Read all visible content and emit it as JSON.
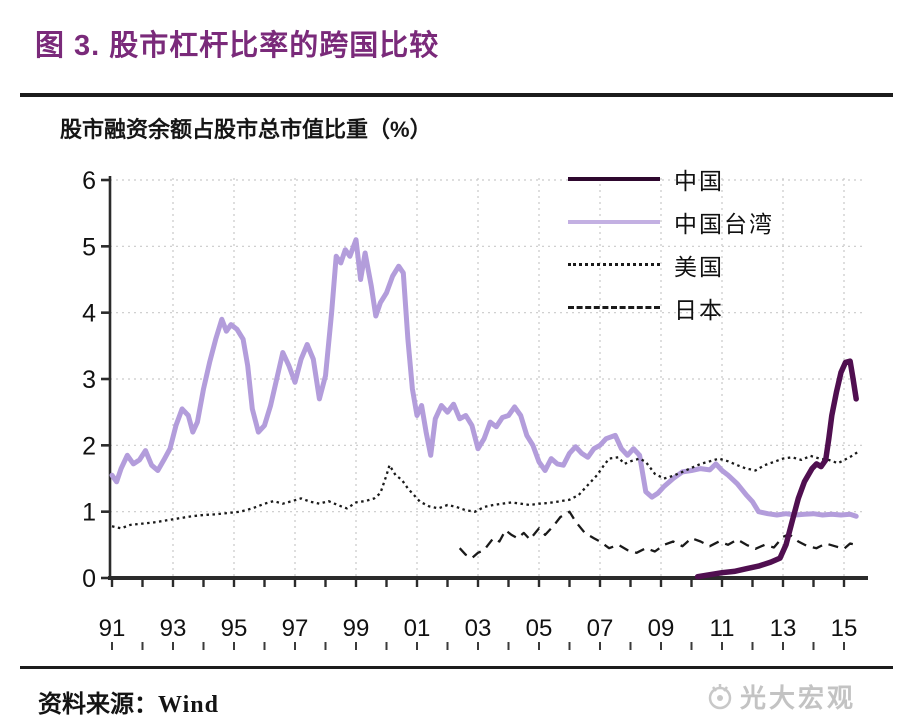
{
  "figure": {
    "title": "图 3. 股市杠杆比率的跨国比较",
    "subtitle": "股市融资余额占股市总市值比重（%）",
    "source_label": "资料来源：",
    "source_value": "Wind",
    "watermark": "光大宏观"
  },
  "colors": {
    "title": "#7a2a7a",
    "axis": "#2b2b2b",
    "grid": "#c9c9c9",
    "china": "#500f50",
    "taiwan": "#b39ddb",
    "usa": "#1a1a1a",
    "japan": "#1a1a1a"
  },
  "chart_data": {
    "type": "line",
    "title": "股市融资余额占股市总市值比重（%）",
    "xlabel": "",
    "ylabel": "股市融资余额占股市总市值比重（%）",
    "grid": "dotted",
    "legend_position": "top-right",
    "x_axis": {
      "tick_labels": [
        "91",
        "93",
        "95",
        "97",
        "99",
        "01",
        "03",
        "05",
        "07",
        "09",
        "11",
        "13",
        "15"
      ],
      "tick_years": [
        1991,
        1993,
        1995,
        1997,
        1999,
        2001,
        2003,
        2005,
        2007,
        2009,
        2011,
        2013,
        2015
      ],
      "minor_tick_every_years": 1,
      "range": [
        1990.9,
        2015.8
      ]
    },
    "y_axis": {
      "ticks": [
        0,
        1,
        2,
        3,
        4,
        5,
        6
      ],
      "range": [
        0,
        6
      ]
    },
    "series": [
      {
        "name": "china",
        "label": "中国",
        "style": "solid",
        "color": "#500f50",
        "width": 5.5,
        "z": 4,
        "points": [
          [
            2010.2,
            0.02
          ],
          [
            2010.6,
            0.05
          ],
          [
            2011.0,
            0.08
          ],
          [
            2011.4,
            0.1
          ],
          [
            2011.8,
            0.14
          ],
          [
            2012.2,
            0.18
          ],
          [
            2012.6,
            0.24
          ],
          [
            2012.9,
            0.3
          ],
          [
            2013.1,
            0.5
          ],
          [
            2013.3,
            0.85
          ],
          [
            2013.5,
            1.2
          ],
          [
            2013.7,
            1.45
          ],
          [
            2013.95,
            1.65
          ],
          [
            2014.1,
            1.72
          ],
          [
            2014.25,
            1.68
          ],
          [
            2014.4,
            1.78
          ],
          [
            2014.5,
            2.1
          ],
          [
            2014.6,
            2.45
          ],
          [
            2014.75,
            2.8
          ],
          [
            2014.9,
            3.1
          ],
          [
            2015.05,
            3.25
          ],
          [
            2015.2,
            3.27
          ],
          [
            2015.3,
            3.0
          ],
          [
            2015.4,
            2.7
          ]
        ]
      },
      {
        "name": "taiwan",
        "label": "中国台湾",
        "style": "solid",
        "color": "#b39ddb",
        "width": 5,
        "z": 1,
        "points": [
          [
            1991.0,
            1.55
          ],
          [
            1991.15,
            1.45
          ],
          [
            1991.3,
            1.65
          ],
          [
            1991.5,
            1.85
          ],
          [
            1991.7,
            1.72
          ],
          [
            1991.9,
            1.78
          ],
          [
            1992.1,
            1.92
          ],
          [
            1992.3,
            1.7
          ],
          [
            1992.5,
            1.62
          ],
          [
            1992.7,
            1.78
          ],
          [
            1992.9,
            1.95
          ],
          [
            1993.1,
            2.3
          ],
          [
            1993.3,
            2.55
          ],
          [
            1993.5,
            2.45
          ],
          [
            1993.65,
            2.2
          ],
          [
            1993.8,
            2.35
          ],
          [
            1994.0,
            2.85
          ],
          [
            1994.2,
            3.25
          ],
          [
            1994.4,
            3.6
          ],
          [
            1994.6,
            3.9
          ],
          [
            1994.75,
            3.72
          ],
          [
            1994.9,
            3.82
          ],
          [
            1995.1,
            3.75
          ],
          [
            1995.3,
            3.6
          ],
          [
            1995.45,
            3.2
          ],
          [
            1995.6,
            2.55
          ],
          [
            1995.8,
            2.2
          ],
          [
            1996.0,
            2.3
          ],
          [
            1996.2,
            2.6
          ],
          [
            1996.4,
            3.0
          ],
          [
            1996.6,
            3.4
          ],
          [
            1996.8,
            3.2
          ],
          [
            1997.0,
            2.95
          ],
          [
            1997.2,
            3.3
          ],
          [
            1997.4,
            3.52
          ],
          [
            1997.6,
            3.3
          ],
          [
            1997.8,
            2.7
          ],
          [
            1998.0,
            3.05
          ],
          [
            1998.2,
            4.0
          ],
          [
            1998.35,
            4.85
          ],
          [
            1998.5,
            4.75
          ],
          [
            1998.65,
            4.95
          ],
          [
            1998.8,
            4.85
          ],
          [
            1999.0,
            5.1
          ],
          [
            1999.15,
            4.5
          ],
          [
            1999.3,
            4.9
          ],
          [
            1999.5,
            4.4
          ],
          [
            1999.65,
            3.95
          ],
          [
            1999.8,
            4.15
          ],
          [
            2000.0,
            4.3
          ],
          [
            2000.2,
            4.55
          ],
          [
            2000.4,
            4.7
          ],
          [
            2000.55,
            4.6
          ],
          [
            2000.7,
            3.6
          ],
          [
            2000.85,
            2.85
          ],
          [
            2001.0,
            2.45
          ],
          [
            2001.15,
            2.6
          ],
          [
            2001.3,
            2.2
          ],
          [
            2001.45,
            1.85
          ],
          [
            2001.6,
            2.4
          ],
          [
            2001.8,
            2.6
          ],
          [
            2002.0,
            2.5
          ],
          [
            2002.2,
            2.62
          ],
          [
            2002.4,
            2.4
          ],
          [
            2002.6,
            2.45
          ],
          [
            2002.8,
            2.3
          ],
          [
            2003.0,
            1.95
          ],
          [
            2003.2,
            2.1
          ],
          [
            2003.4,
            2.35
          ],
          [
            2003.6,
            2.28
          ],
          [
            2003.8,
            2.42
          ],
          [
            2004.0,
            2.45
          ],
          [
            2004.2,
            2.58
          ],
          [
            2004.4,
            2.45
          ],
          [
            2004.6,
            2.15
          ],
          [
            2004.8,
            2.0
          ],
          [
            2005.0,
            1.75
          ],
          [
            2005.2,
            1.62
          ],
          [
            2005.4,
            1.8
          ],
          [
            2005.6,
            1.72
          ],
          [
            2005.8,
            1.7
          ],
          [
            2006.0,
            1.88
          ],
          [
            2006.2,
            1.98
          ],
          [
            2006.4,
            1.88
          ],
          [
            2006.6,
            1.82
          ],
          [
            2006.8,
            1.95
          ],
          [
            2007.0,
            2.0
          ],
          [
            2007.2,
            2.1
          ],
          [
            2007.5,
            2.15
          ],
          [
            2007.7,
            1.95
          ],
          [
            2007.9,
            1.85
          ],
          [
            2008.1,
            1.95
          ],
          [
            2008.3,
            1.85
          ],
          [
            2008.5,
            1.3
          ],
          [
            2008.7,
            1.22
          ],
          [
            2008.9,
            1.28
          ],
          [
            2009.1,
            1.38
          ],
          [
            2009.4,
            1.5
          ],
          [
            2009.7,
            1.6
          ],
          [
            2010.0,
            1.62
          ],
          [
            2010.3,
            1.65
          ],
          [
            2010.6,
            1.63
          ],
          [
            2010.8,
            1.72
          ],
          [
            2011.0,
            1.62
          ],
          [
            2011.2,
            1.55
          ],
          [
            2011.5,
            1.42
          ],
          [
            2011.8,
            1.25
          ],
          [
            2012.0,
            1.15
          ],
          [
            2012.2,
            1.0
          ],
          [
            2012.5,
            0.97
          ],
          [
            2012.8,
            0.95
          ],
          [
            2013.1,
            0.97
          ],
          [
            2013.4,
            0.95
          ],
          [
            2013.7,
            0.96
          ],
          [
            2014.0,
            0.97
          ],
          [
            2014.3,
            0.95
          ],
          [
            2014.6,
            0.96
          ],
          [
            2014.9,
            0.95
          ],
          [
            2015.2,
            0.96
          ],
          [
            2015.4,
            0.93
          ]
        ]
      },
      {
        "name": "usa",
        "label": "美国",
        "style": "dotted",
        "color": "#1a1a1a",
        "width": 2.3,
        "z": 2,
        "points": [
          [
            1991.0,
            0.78
          ],
          [
            1991.3,
            0.75
          ],
          [
            1991.6,
            0.8
          ],
          [
            1992.0,
            0.82
          ],
          [
            1992.4,
            0.84
          ],
          [
            1992.8,
            0.87
          ],
          [
            1993.2,
            0.9
          ],
          [
            1993.6,
            0.93
          ],
          [
            1994.0,
            0.95
          ],
          [
            1994.4,
            0.96
          ],
          [
            1994.8,
            0.98
          ],
          [
            1995.2,
            1.0
          ],
          [
            1995.6,
            1.05
          ],
          [
            1996.0,
            1.12
          ],
          [
            1996.3,
            1.16
          ],
          [
            1996.6,
            1.12
          ],
          [
            1996.9,
            1.16
          ],
          [
            1997.2,
            1.2
          ],
          [
            1997.5,
            1.15
          ],
          [
            1997.8,
            1.12
          ],
          [
            1998.1,
            1.16
          ],
          [
            1998.4,
            1.1
          ],
          [
            1998.7,
            1.05
          ],
          [
            1999.0,
            1.14
          ],
          [
            1999.3,
            1.16
          ],
          [
            1999.6,
            1.2
          ],
          [
            1999.8,
            1.28
          ],
          [
            2000.0,
            1.55
          ],
          [
            2000.1,
            1.7
          ],
          [
            2000.3,
            1.55
          ],
          [
            2000.5,
            1.48
          ],
          [
            2000.7,
            1.35
          ],
          [
            2000.9,
            1.25
          ],
          [
            2001.1,
            1.15
          ],
          [
            2001.4,
            1.08
          ],
          [
            2001.7,
            1.05
          ],
          [
            2002.0,
            1.1
          ],
          [
            2002.3,
            1.07
          ],
          [
            2002.6,
            1.02
          ],
          [
            2002.9,
            1.0
          ],
          [
            2003.2,
            1.07
          ],
          [
            2003.5,
            1.1
          ],
          [
            2003.8,
            1.12
          ],
          [
            2004.1,
            1.14
          ],
          [
            2004.4,
            1.12
          ],
          [
            2004.7,
            1.1
          ],
          [
            2005.0,
            1.12
          ],
          [
            2005.3,
            1.13
          ],
          [
            2005.6,
            1.15
          ],
          [
            2006.0,
            1.18
          ],
          [
            2006.3,
            1.25
          ],
          [
            2006.6,
            1.4
          ],
          [
            2006.9,
            1.55
          ],
          [
            2007.1,
            1.68
          ],
          [
            2007.3,
            1.8
          ],
          [
            2007.6,
            1.82
          ],
          [
            2007.8,
            1.72
          ],
          [
            2008.0,
            1.76
          ],
          [
            2008.3,
            1.8
          ],
          [
            2008.5,
            1.75
          ],
          [
            2008.8,
            1.57
          ],
          [
            2009.1,
            1.5
          ],
          [
            2009.4,
            1.54
          ],
          [
            2009.7,
            1.6
          ],
          [
            2010.0,
            1.66
          ],
          [
            2010.3,
            1.72
          ],
          [
            2010.6,
            1.76
          ],
          [
            2010.9,
            1.8
          ],
          [
            2011.2,
            1.76
          ],
          [
            2011.5,
            1.7
          ],
          [
            2011.8,
            1.65
          ],
          [
            2012.1,
            1.62
          ],
          [
            2012.4,
            1.7
          ],
          [
            2012.7,
            1.75
          ],
          [
            2013.0,
            1.8
          ],
          [
            2013.3,
            1.82
          ],
          [
            2013.6,
            1.78
          ],
          [
            2013.9,
            1.84
          ],
          [
            2014.2,
            1.8
          ],
          [
            2014.5,
            1.78
          ],
          [
            2014.8,
            1.73
          ],
          [
            2015.1,
            1.8
          ],
          [
            2015.3,
            1.85
          ],
          [
            2015.45,
            1.9
          ]
        ]
      },
      {
        "name": "japan",
        "label": "日本",
        "style": "dashed",
        "color": "#1a1a1a",
        "width": 2.3,
        "z": 3,
        "points": [
          [
            2002.4,
            0.45
          ],
          [
            2002.6,
            0.35
          ],
          [
            2002.8,
            0.3
          ],
          [
            2003.0,
            0.38
          ],
          [
            2003.2,
            0.42
          ],
          [
            2003.5,
            0.6
          ],
          [
            2003.7,
            0.55
          ],
          [
            2003.9,
            0.72
          ],
          [
            2004.1,
            0.65
          ],
          [
            2004.3,
            0.6
          ],
          [
            2004.5,
            0.68
          ],
          [
            2004.7,
            0.58
          ],
          [
            2005.0,
            0.75
          ],
          [
            2005.2,
            0.65
          ],
          [
            2005.5,
            0.8
          ],
          [
            2005.7,
            0.92
          ],
          [
            2006.0,
            1.0
          ],
          [
            2006.2,
            0.85
          ],
          [
            2006.5,
            0.68
          ],
          [
            2006.8,
            0.6
          ],
          [
            2007.0,
            0.55
          ],
          [
            2007.3,
            0.45
          ],
          [
            2007.6,
            0.5
          ],
          [
            2007.9,
            0.42
          ],
          [
            2008.2,
            0.38
          ],
          [
            2008.5,
            0.45
          ],
          [
            2008.8,
            0.4
          ],
          [
            2009.1,
            0.5
          ],
          [
            2009.4,
            0.55
          ],
          [
            2009.7,
            0.48
          ],
          [
            2010.0,
            0.6
          ],
          [
            2010.3,
            0.55
          ],
          [
            2010.6,
            0.48
          ],
          [
            2010.9,
            0.55
          ],
          [
            2011.2,
            0.5
          ],
          [
            2011.5,
            0.58
          ],
          [
            2011.8,
            0.5
          ],
          [
            2012.1,
            0.44
          ],
          [
            2012.4,
            0.5
          ],
          [
            2012.7,
            0.46
          ],
          [
            2013.0,
            0.62
          ],
          [
            2013.2,
            0.66
          ],
          [
            2013.5,
            0.55
          ],
          [
            2013.8,
            0.48
          ],
          [
            2014.1,
            0.45
          ],
          [
            2014.4,
            0.52
          ],
          [
            2014.7,
            0.48
          ],
          [
            2015.0,
            0.44
          ],
          [
            2015.2,
            0.52
          ],
          [
            2015.4,
            0.5
          ]
        ]
      }
    ]
  }
}
